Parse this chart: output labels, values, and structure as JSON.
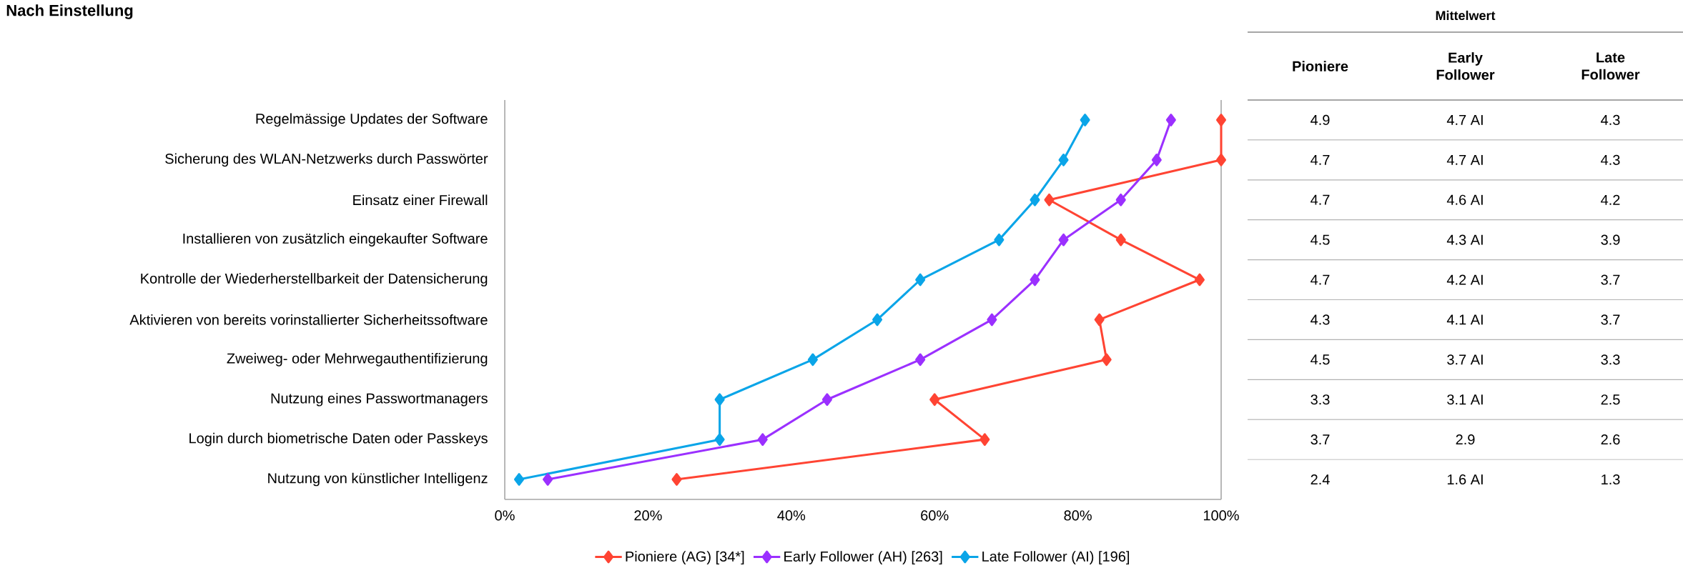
{
  "chart_data": [
    {
      "type": "line",
      "title": "Nach Einstellung",
      "orientation": "horizontal",
      "categories": [
        "Regelmässige Updates der Software",
        "Sicherung des WLAN-Netzwerks durch Passwörter",
        "Einsatz einer Firewall",
        "Installieren von zusätzlich eingekaufter Software",
        "Kontrolle der Wiederherstellbarkeit der Datensicherung",
        "Aktivieren von bereits vorinstallierter Sicherheitssoftware",
        "Zweiweg- oder Mehrwegauthentifizierung",
        "Nutzung eines Passwortmanagers",
        "Login durch biometrische Daten oder Passkeys",
        "Nutzung von künstlicher Intelligenz"
      ],
      "series": [
        {
          "name": "Pioniere (AG) [34*]",
          "color": "#ff4433",
          "values": [
            100,
            100,
            76,
            86,
            97,
            83,
            84,
            60,
            67,
            24
          ]
        },
        {
          "name": "Early Follower (AH) [263]",
          "color": "#9b30ff",
          "values": [
            93,
            91,
            86,
            78,
            74,
            68,
            58,
            45,
            36,
            6
          ]
        },
        {
          "name": "Late Follower (AI) [196]",
          "color": "#0aa5e8",
          "values": [
            81,
            78,
            74,
            69,
            58,
            52,
            43,
            30,
            30,
            2
          ]
        }
      ],
      "xlim": [
        0,
        100
      ],
      "xticks": [
        {
          "value": 0,
          "label": "0%"
        },
        {
          "value": 20,
          "label": "20%"
        },
        {
          "value": 40,
          "label": "40%"
        },
        {
          "value": 60,
          "label": "60%"
        },
        {
          "value": 80,
          "label": "80%"
        },
        {
          "value": 100,
          "label": "100%"
        }
      ],
      "legend": "bottom",
      "marker": "diamond"
    },
    {
      "type": "other",
      "title": "Mittelwert",
      "categories": [
        "Pioniere",
        "Early Follower",
        "Late Follower"
      ],
      "annotations": [
        "4.9",
        "4.7 AI",
        "4.3",
        "4.7",
        "4.7 AI",
        "4.3",
        "4.7",
        "4.6 AI",
        "4.2",
        "4.5",
        "4.3 AI",
        "3.9",
        "4.7",
        "4.2 AI",
        "3.7",
        "4.3",
        "4.1 AI",
        "3.7",
        "4.5",
        "3.7 AI",
        "3.3",
        "3.3",
        "3.1 AI",
        "2.5",
        "3.7",
        "2.9",
        "2.6",
        "2.4",
        "1.6 AI",
        "1.3"
      ]
    }
  ]
}
